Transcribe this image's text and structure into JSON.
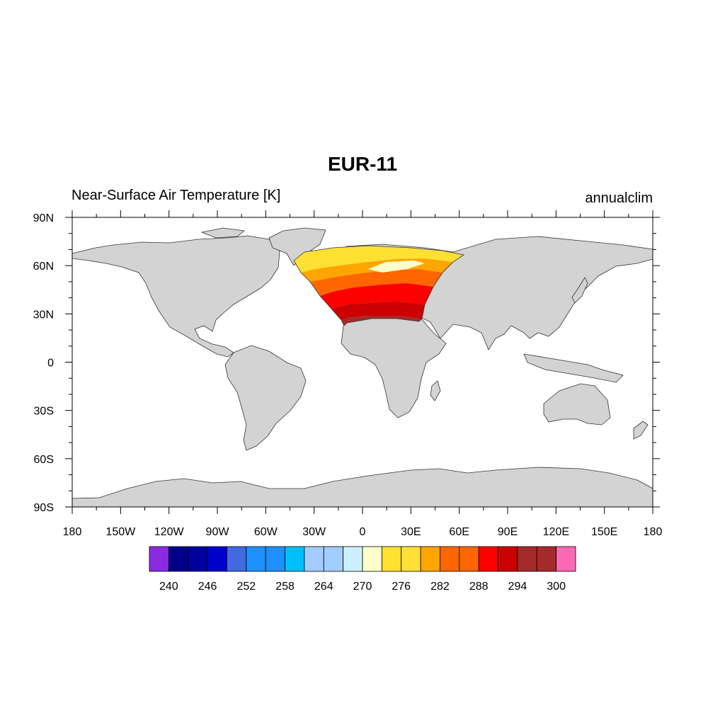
{
  "title": "EUR-11",
  "left_subtitle": "Near-Surface Air Temperature [K]",
  "right_subtitle": "annualclim",
  "map": {
    "projection": "cylindrical-equidistant",
    "lon_range": [
      -180,
      180
    ],
    "lat_range": [
      -90,
      90
    ],
    "lon_ticks": [
      {
        "value": -180,
        "label": "180"
      },
      {
        "value": -150,
        "label": "150W"
      },
      {
        "value": -120,
        "label": "120W"
      },
      {
        "value": -90,
        "label": "90W"
      },
      {
        "value": -60,
        "label": "60W"
      },
      {
        "value": -30,
        "label": "30W"
      },
      {
        "value": 0,
        "label": "0"
      },
      {
        "value": 30,
        "label": "30E"
      },
      {
        "value": 60,
        "label": "60E"
      },
      {
        "value": 90,
        "label": "90E"
      },
      {
        "value": 120,
        "label": "120E"
      },
      {
        "value": 150,
        "label": "150E"
      },
      {
        "value": 180,
        "label": "180"
      }
    ],
    "lat_ticks": [
      {
        "value": 90,
        "label": "90N"
      },
      {
        "value": 60,
        "label": "60N"
      },
      {
        "value": 30,
        "label": "30N"
      },
      {
        "value": 0,
        "label": "0"
      },
      {
        "value": -30,
        "label": "30S"
      },
      {
        "value": -60,
        "label": "60S"
      },
      {
        "value": -90,
        "label": "90S"
      }
    ],
    "land_color": "#d3d3d3",
    "domain_color_bands": [
      "#ffe033",
      "#ffa500",
      "#ff6600",
      "#ff0000",
      "#cc0000",
      "#a52a2a"
    ]
  },
  "colorbar": {
    "colors": [
      "#8a2be2",
      "#00008b",
      "#00009f",
      "#0000cd",
      "#4169e1",
      "#1e90ff",
      "#1e90ff",
      "#00bfff",
      "#a3cdff",
      "#a3cdff",
      "#ccf0ff",
      "#ffffcc",
      "#ffe033",
      "#ffe033",
      "#ffa500",
      "#ff6600",
      "#ff6600",
      "#ff0000",
      "#cc0000",
      "#a52a2a",
      "#a52a2a",
      "#ff69b4"
    ],
    "labels": [
      {
        "value": 240,
        "text": "240"
      },
      {
        "value": 246,
        "text": "246"
      },
      {
        "value": 252,
        "text": "252"
      },
      {
        "value": 258,
        "text": "258"
      },
      {
        "value": 264,
        "text": "264"
      },
      {
        "value": 270,
        "text": "270"
      },
      {
        "value": 276,
        "text": "276"
      },
      {
        "value": 282,
        "text": "282"
      },
      {
        "value": 288,
        "text": "288"
      },
      {
        "value": 294,
        "text": "294"
      },
      {
        "value": 300,
        "text": "300"
      }
    ],
    "first_label_boundary": 1,
    "step_per_label": 2
  }
}
